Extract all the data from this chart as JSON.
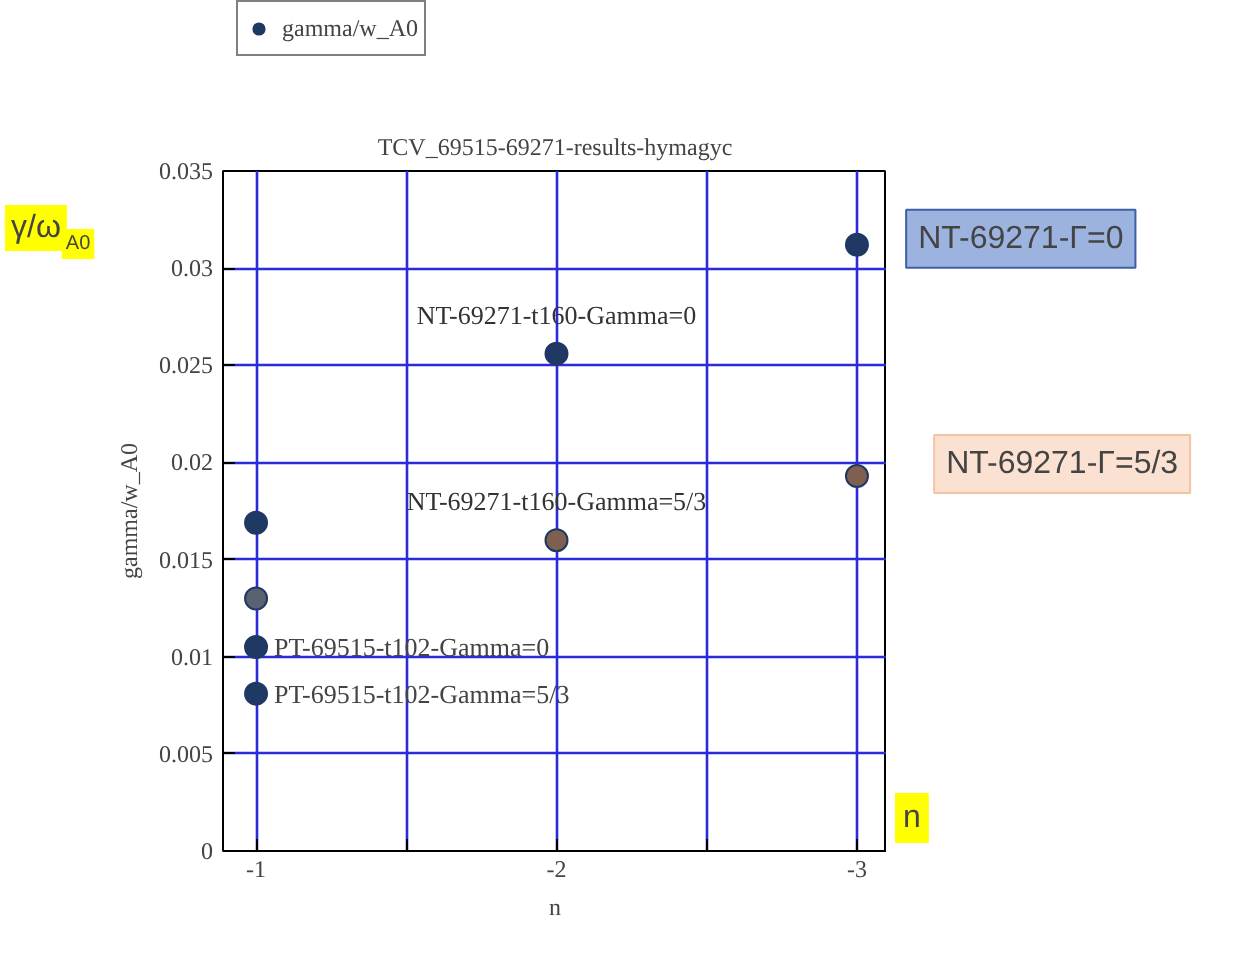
{
  "chart_data": {
    "type": "scatter",
    "title": "TCV_69515-69271-results-hymagyc",
    "xlabel": "n",
    "ylabel": "gamma/w_A0",
    "series": [
      {
        "name": "gamma/w_A0",
        "color": "#1f3864",
        "x": [
          -1,
          -1,
          -1,
          -1,
          -2,
          -2,
          -3,
          -3
        ],
        "values": [
          0.0169,
          0.013,
          0.0105,
          0.0081,
          0.0256,
          0.016,
          0.0312,
          0.0193
        ],
        "colors": [
          "#1f3864",
          "#5a6272",
          "#1f3864",
          "#1f3864",
          "#1f3864",
          "#7f6050",
          "#1f3864",
          "#7f6050"
        ]
      }
    ],
    "xlim": [
      -0.89,
      -3.1
    ],
    "ylim": [
      0,
      0.035
    ],
    "xticks": [
      -1,
      {
        "value": -1.5,
        "label": null
      },
      -2,
      {
        "value": -2.5,
        "label": null
      },
      -3
    ],
    "yticks": [
      0,
      0.005,
      0.01,
      0.015,
      0.02,
      0.025,
      0.03,
      0.035
    ],
    "grid": true,
    "legend": "top left",
    "marker": "circle",
    "annotations": [
      {
        "text": "NT-69271-t160-Gamma=0",
        "x": -2,
        "y": 0.0256
      },
      {
        "text": "NT-69271-t160-Gamma=5/3",
        "x": -2,
        "y": 0.016
      },
      {
        "text": "PT-69515-t102-Gamma=0",
        "x": -1,
        "y": 0.0105
      },
      {
        "text": "PT-69515-t102-Gamma=5/3",
        "x": -1,
        "y": 0.0081
      },
      {
        "text": "NT-69271-Γ=0",
        "x": -3,
        "y": 0.0312
      },
      {
        "text": "NT-69271-Γ=5/3",
        "x": -3,
        "y": 0.0193
      },
      "γ/ω$_{A0}$",
      "n"
    ]
  }
}
